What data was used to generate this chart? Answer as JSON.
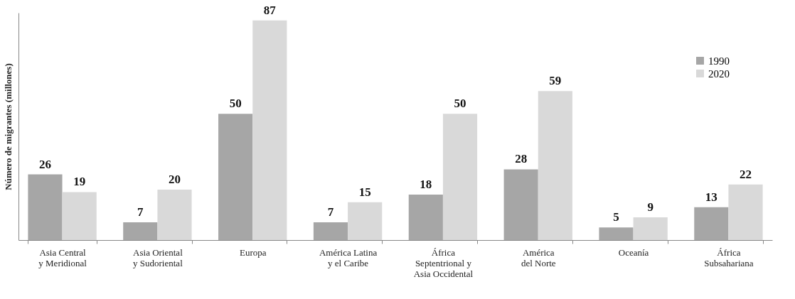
{
  "chart_data": {
    "type": "bar",
    "ylabel": "Número de migrantes (millones)",
    "categories": [
      "Asia Central\ny Meridional",
      "Asia Oriental\ny Sudoriental",
      "Europa",
      "América Latina\ny el Caribe",
      "África\nSeptentrional y\nAsia Occidental",
      "América\ndel Norte",
      "Oceanía",
      "África\nSubsahariana"
    ],
    "series": [
      {
        "name": "1990",
        "color": "#a6a6a6",
        "values": [
          26,
          7,
          50,
          7,
          18,
          28,
          5,
          13
        ]
      },
      {
        "name": "2020",
        "color": "#d9d9d9",
        "values": [
          19,
          20,
          87,
          15,
          50,
          59,
          9,
          22
        ]
      }
    ],
    "data_labels": true,
    "legend": "top right",
    "grid": false,
    "tick_labels": "x"
  }
}
